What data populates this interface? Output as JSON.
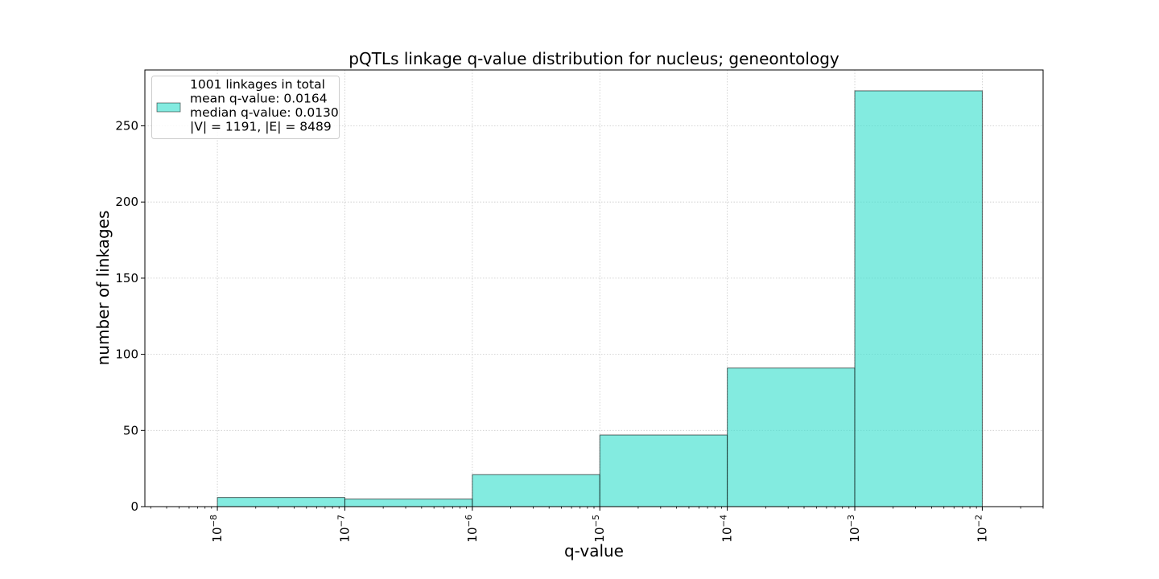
{
  "chart_data": {
    "type": "bar",
    "title": "pQTLs linkage q-value distribution for nucleus; geneontology",
    "xlabel": "q-value",
    "ylabel": "number of linkages",
    "x_scale": "log",
    "xlim": [
      2.7e-09,
      0.03
    ],
    "ylim": [
      0,
      286.7
    ],
    "grid": true,
    "legend_position": "top-left",
    "bar_color": "#40E0D0",
    "bar_alpha": 0.65,
    "edge_color": "#000000",
    "bins": [
      {
        "x_start": 1e-08,
        "x_end": 1e-07,
        "value": 6
      },
      {
        "x_start": 1e-07,
        "x_end": 1e-06,
        "value": 5
      },
      {
        "x_start": 1e-06,
        "x_end": 1e-05,
        "value": 21
      },
      {
        "x_start": 1e-05,
        "x_end": 0.0001,
        "value": 47
      },
      {
        "x_start": 0.0001,
        "x_end": 0.001,
        "value": 91
      },
      {
        "x_start": 0.001,
        "x_end": 0.01,
        "value": 273
      }
    ],
    "x_major_ticks": [
      {
        "value": 1e-08,
        "base": "10",
        "exp": "−8"
      },
      {
        "value": 1e-07,
        "base": "10",
        "exp": "−7"
      },
      {
        "value": 1e-06,
        "base": "10",
        "exp": "−6"
      },
      {
        "value": 1e-05,
        "base": "10",
        "exp": "−5"
      },
      {
        "value": 0.0001,
        "base": "10",
        "exp": "−4"
      },
      {
        "value": 0.001,
        "base": "10",
        "exp": "−3"
      },
      {
        "value": 0.01,
        "base": "10",
        "exp": "−2"
      }
    ],
    "y_ticks": [
      0,
      50,
      100,
      150,
      200,
      250
    ],
    "legend": {
      "lines": [
        "1001 linkages in total",
        "mean q-value: 0.0164",
        "median q-value: 0.0130",
        "|V| = 1191, |E| = 8489"
      ]
    }
  }
}
